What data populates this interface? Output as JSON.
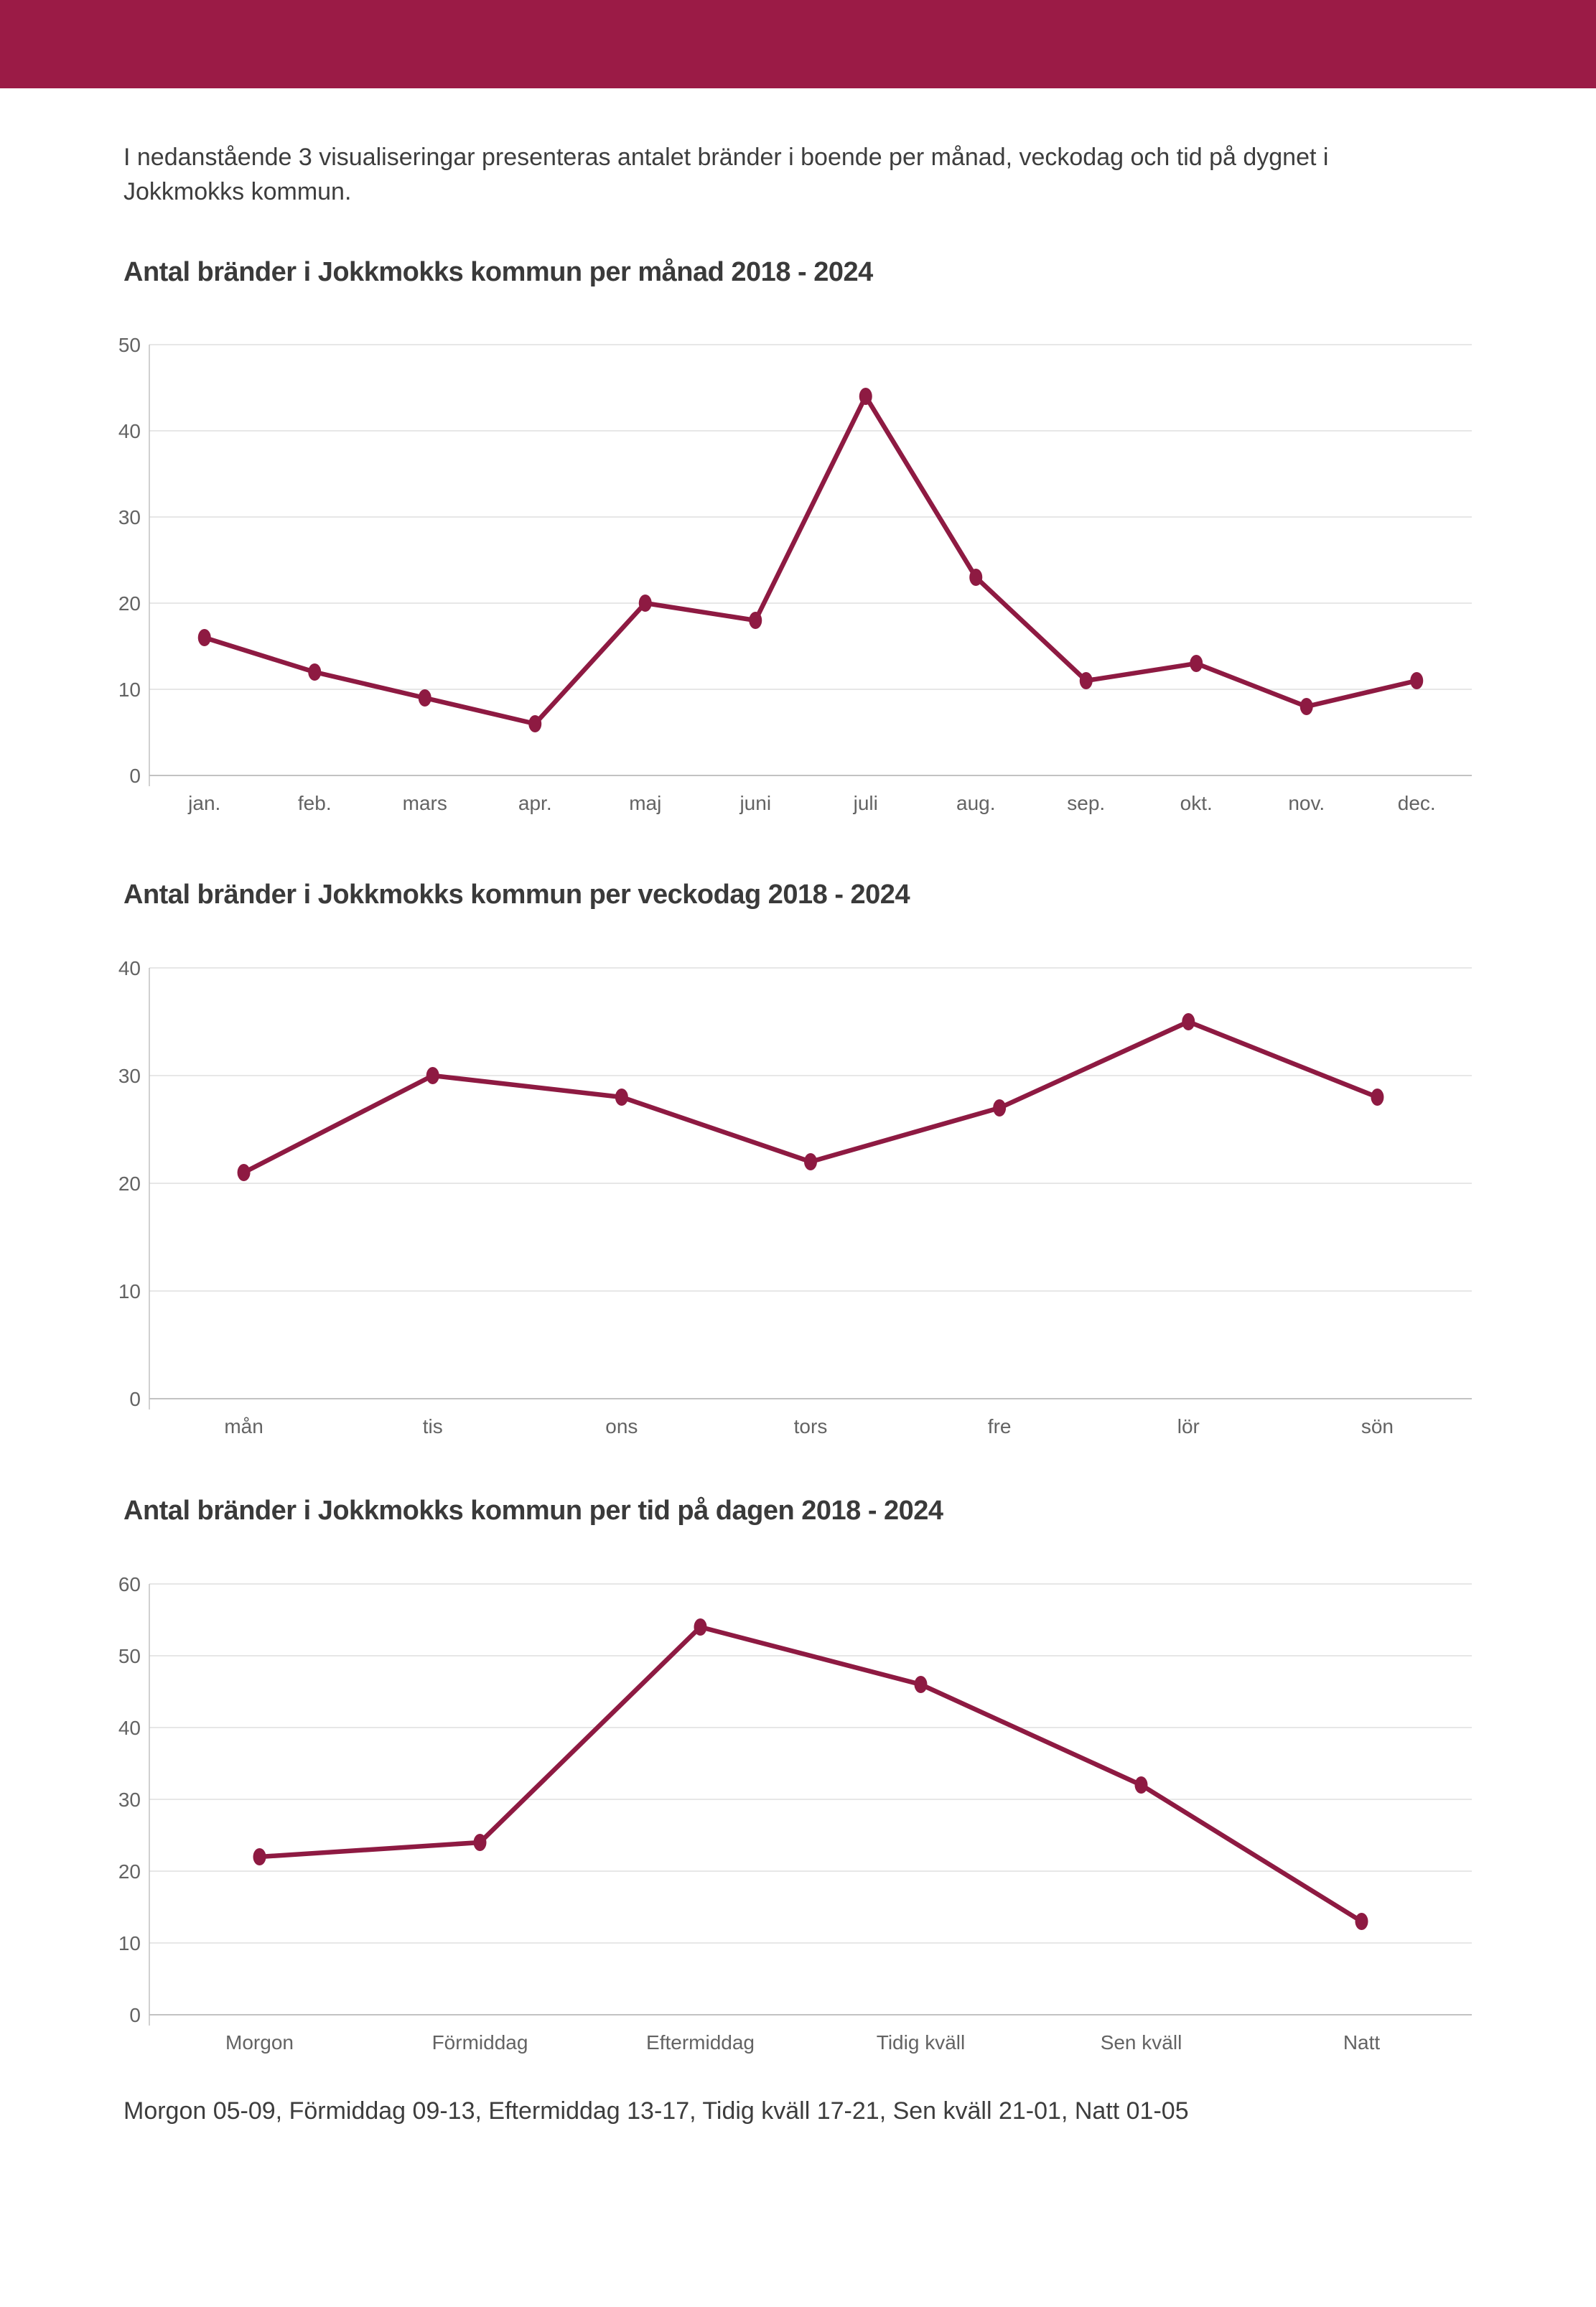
{
  "page": {
    "header_bar_color": "#9B1B46",
    "background_color": "#ffffff",
    "intro_text": "I nedanstående 3 visualiseringar presenteras antalet bränder i boende per månad, veckodag och tid på dygnet i Jokkmokks kommun.",
    "footer_note": "Morgon 05-09, Förmiddag 09-13, Eftermiddag 13-17, Tidig kväll 17-21, Sen kväll 21-01, Natt 01-05"
  },
  "chart_data": [
    {
      "type": "line",
      "title": "Antal bränder i Jokkmokks kommun per månad 2018 - 2024",
      "categories": [
        "jan.",
        "feb.",
        "mars",
        "apr.",
        "maj",
        "juni",
        "juli",
        "aug.",
        "sep.",
        "okt.",
        "nov.",
        "dec."
      ],
      "values": [
        16,
        12,
        9,
        6,
        20,
        18,
        44,
        23,
        11,
        13,
        8,
        11
      ],
      "xlabel": "",
      "ylabel": "",
      "ylim": [
        0,
        50
      ],
      "yticks": [
        0,
        10,
        20,
        30,
        40,
        50
      ],
      "grid": "horizontal",
      "legend": "none",
      "line_color": "#8E1A42",
      "gridline_color": "#dfdfdf",
      "baseline_color": "#c2c2c2"
    },
    {
      "type": "line",
      "title": "Antal bränder i Jokkmokks kommun per veckodag 2018 - 2024",
      "categories": [
        "mån",
        "tis",
        "ons",
        "tors",
        "fre",
        "lör",
        "sön"
      ],
      "values": [
        21,
        30,
        28,
        22,
        27,
        35,
        28
      ],
      "xlabel": "",
      "ylabel": "",
      "ylim": [
        0,
        40
      ],
      "yticks": [
        0,
        10,
        20,
        30,
        40
      ],
      "grid": "horizontal",
      "legend": "none",
      "line_color": "#8E1A42",
      "gridline_color": "#dfdfdf",
      "baseline_color": "#c2c2c2"
    },
    {
      "type": "line",
      "title": "Antal bränder i Jokkmokks kommun per tid på dagen 2018 - 2024",
      "categories": [
        "Morgon",
        "Förmiddag",
        "Eftermiddag",
        "Tidig kväll",
        "Sen kväll",
        "Natt"
      ],
      "values": [
        22,
        24,
        54,
        46,
        32,
        13
      ],
      "xlabel": "",
      "ylabel": "",
      "ylim": [
        0,
        60
      ],
      "yticks": [
        0,
        10,
        20,
        30,
        40,
        50,
        60
      ],
      "grid": "horizontal",
      "legend": "none",
      "line_color": "#8E1A42",
      "gridline_color": "#dfdfdf",
      "baseline_color": "#c2c2c2"
    }
  ]
}
